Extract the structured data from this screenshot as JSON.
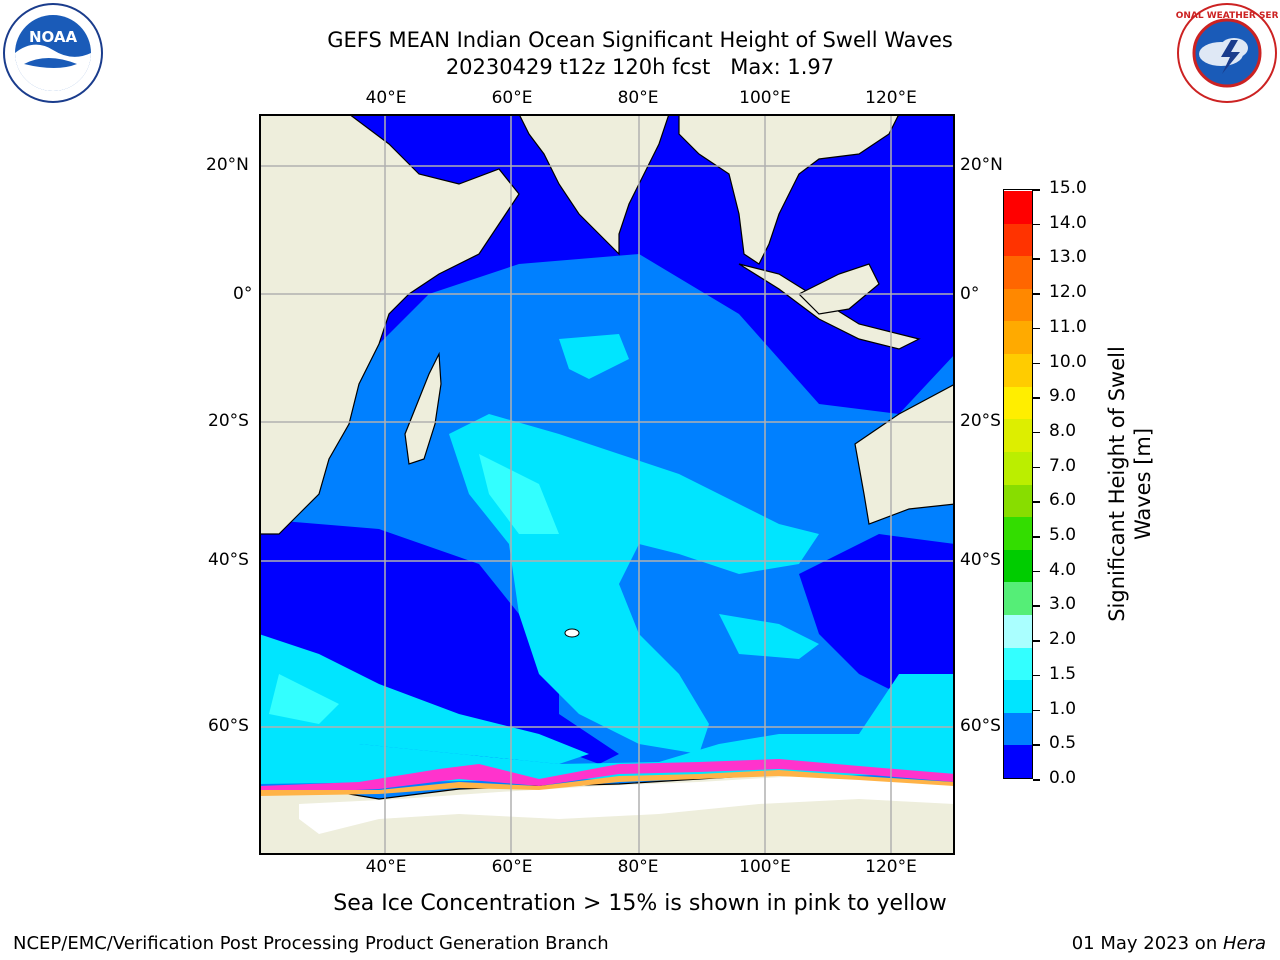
{
  "title": {
    "line1": "GEFS MEAN Indian Ocean Significant Height of Swell Waves",
    "line2": "20230429 t12z 120h fcst   Max: 1.97"
  },
  "logos": {
    "left": {
      "text": "NOAA",
      "icon": "noaa-logo"
    },
    "right": {
      "text": "NATIONAL WEATHER SERVICE",
      "icon": "nws-logo"
    }
  },
  "map": {
    "lon_labels": [
      "40°E",
      "60°E",
      "80°E",
      "100°E",
      "120°E"
    ],
    "lat_labels": [
      "20°N",
      "0°",
      "20°S",
      "40°S",
      "60°S"
    ],
    "colors": {
      "land": "#EEEEDC",
      "ocean_low": "#0000FF",
      "ocean_mid": "#0080FF",
      "ocean_high": "#00FFFF",
      "ice_pink": "#FF33CC",
      "ice_orange": "#FFB347"
    }
  },
  "colorbar": {
    "ticks": [
      "15.0",
      "14.0",
      "13.0",
      "12.0",
      "11.0",
      "10.0",
      "9.0",
      "8.0",
      "7.0",
      "6.0",
      "5.0",
      "4.0",
      "3.0",
      "2.0",
      "1.5",
      "1.0",
      "0.5",
      "0.0"
    ],
    "colors": [
      "#0000FF",
      "#0080FF",
      "#00E5FF",
      "#33FFFF",
      "#AAFFFF",
      "#55EE77",
      "#00CC00",
      "#33DD00",
      "#88DD00",
      "#BBEE00",
      "#DDEE00",
      "#FFEE00",
      "#FFCC00",
      "#FFAA00",
      "#FF8800",
      "#FF6600",
      "#FF3300",
      "#FF0000"
    ],
    "label_line1": "Significant Height of Swell",
    "label_line2": "Waves [m]"
  },
  "caption": "Sea Ice Concentration > 15% is shown in pink to yellow",
  "footer": {
    "left": "NCEP/EMC/Verification Post Processing Product Generation Branch",
    "right_prefix": "01 May 2023 on ",
    "right_machine": "Hera"
  }
}
